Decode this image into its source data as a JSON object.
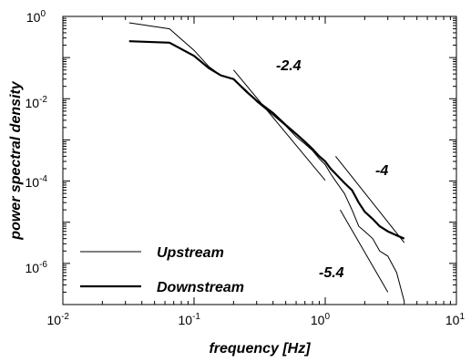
{
  "chart_data": {
    "type": "line",
    "title": "",
    "xlabel": "frequency [Hz]",
    "ylabel": "power spectral density",
    "xscale": "log",
    "yscale": "log",
    "xlim": [
      0.01,
      10
    ],
    "ylim": [
      1e-07,
      1
    ],
    "x_ticks": [
      {
        "value": 0.01,
        "base": "10",
        "exp": "-2"
      },
      {
        "value": 0.1,
        "base": "10",
        "exp": "-1"
      },
      {
        "value": 1,
        "base": "10",
        "exp": "0"
      },
      {
        "value": 10,
        "base": "10",
        "exp": "1"
      }
    ],
    "y_ticks": [
      {
        "value": 1e-06,
        "base": "10",
        "exp": "-6"
      },
      {
        "value": 0.0001,
        "base": "10",
        "exp": "-4"
      },
      {
        "value": 0.01,
        "base": "10",
        "exp": "-2"
      },
      {
        "value": 1,
        "base": "10",
        "exp": "0"
      }
    ],
    "grid": false,
    "legend_position": "bottom-left",
    "series": [
      {
        "name": "Upstream",
        "style": "thin",
        "x": [
          0.032,
          0.065,
          0.1,
          0.13,
          0.16,
          0.2,
          0.25,
          0.3,
          0.4,
          0.5,
          0.6,
          0.7,
          0.8,
          0.9,
          1.0,
          1.1,
          1.2,
          1.4,
          1.6,
          1.8,
          2.0,
          2.3,
          2.6,
          3.0,
          3.5,
          4.0
        ],
        "y": [
          0.7,
          0.5,
          0.15,
          0.06,
          0.037,
          0.03,
          0.016,
          0.0085,
          0.004,
          0.0022,
          0.0012,
          0.0008,
          0.00055,
          0.00035,
          0.00025,
          0.00015,
          0.0001,
          5e-05,
          2e-05,
          8e-06,
          6e-06,
          4e-06,
          2e-06,
          1.5e-06,
          6e-07,
          1.2e-07
        ]
      },
      {
        "name": "Downstream",
        "style": "thick",
        "x": [
          0.032,
          0.065,
          0.1,
          0.13,
          0.16,
          0.2,
          0.25,
          0.3,
          0.4,
          0.5,
          0.6,
          0.7,
          0.8,
          0.9,
          1.0,
          1.1,
          1.2,
          1.4,
          1.6,
          1.8,
          2.0,
          2.3,
          2.6,
          3.0,
          3.5,
          4.0
        ],
        "y": [
          0.25,
          0.23,
          0.11,
          0.055,
          0.037,
          0.03,
          0.015,
          0.009,
          0.0045,
          0.0023,
          0.0014,
          0.0009,
          0.0006,
          0.0004,
          0.0003,
          0.0002,
          0.00015,
          9e-05,
          6e-05,
          3e-05,
          1.8e-05,
          1.2e-05,
          8e-06,
          6e-06,
          4.8e-06,
          4e-06
        ]
      }
    ],
    "reference_lines": [
      {
        "label": "-2.4",
        "slope": -2.4,
        "x": [
          0.2,
          1.0
        ],
        "y": [
          0.05,
          0.000104
        ]
      },
      {
        "label": "-4",
        "slope": -4,
        "x": [
          1.2,
          4.0
        ],
        "y": [
          0.0004,
          3.2e-06
        ]
      },
      {
        "label": "-5.4",
        "slope": -5.4,
        "x": [
          1.3,
          3.0
        ],
        "y": [
          2e-05,
          2e-07
        ]
      }
    ]
  }
}
